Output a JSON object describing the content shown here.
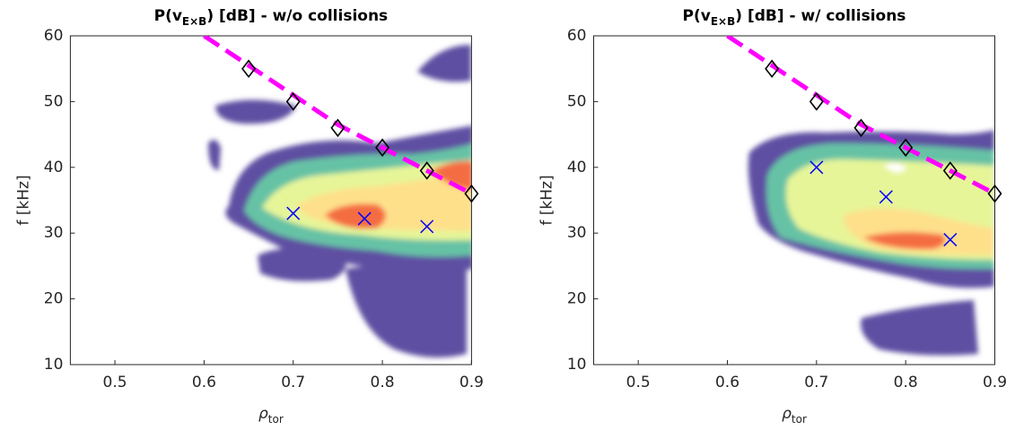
{
  "chart_data": [
    {
      "type": "contour",
      "title": "P(v",
      "title_subscript": "E×B",
      "title_suffix": ") [dB] - w/o collisions",
      "xlabel": "ρ",
      "xlabel_subscript": "tor",
      "ylabel": "f [kHz]",
      "xlim": [
        0.45,
        0.9
      ],
      "xticks": [
        0.5,
        0.6,
        0.7,
        0.8,
        0.9
      ],
      "ylim": [
        10,
        60
      ],
      "yticks": [
        10,
        20,
        30,
        40,
        50,
        60
      ],
      "line": {
        "x": [
          0.6,
          0.65,
          0.7,
          0.75,
          0.8,
          0.85,
          0.9
        ],
        "y": [
          60,
          55.5,
          51,
          46.5,
          43,
          39.5,
          36
        ],
        "color": "#ff00ff"
      },
      "diamonds": {
        "x": [
          0.65,
          0.7,
          0.75,
          0.8,
          0.85,
          0.9
        ],
        "y": [
          55,
          50,
          46,
          43,
          39.5,
          36
        ],
        "color": "#000000"
      },
      "crosses": {
        "x": [
          0.7,
          0.78,
          0.85
        ],
        "y": [
          33,
          32.2,
          31
        ],
        "color": "#0000ff"
      }
    },
    {
      "type": "contour",
      "title": "P(v",
      "title_subscript": "E×B",
      "title_suffix": ") [dB] - w/ collisions",
      "xlabel": "ρ",
      "xlabel_subscript": "tor",
      "ylabel": "f [kHz]",
      "xlim": [
        0.45,
        0.9
      ],
      "xticks": [
        0.5,
        0.6,
        0.7,
        0.8,
        0.9
      ],
      "ylim": [
        10,
        60
      ],
      "yticks": [
        10,
        20,
        30,
        40,
        50,
        60
      ],
      "line": {
        "x": [
          0.6,
          0.65,
          0.7,
          0.75,
          0.8,
          0.85,
          0.9
        ],
        "y": [
          60,
          55.5,
          51,
          46.5,
          43,
          39.5,
          36
        ],
        "color": "#ff00ff"
      },
      "diamonds": {
        "x": [
          0.65,
          0.7,
          0.75,
          0.8,
          0.85,
          0.9
        ],
        "y": [
          55,
          50,
          46,
          43,
          39.5,
          36
        ],
        "color": "#000000"
      },
      "crosses": {
        "x": [
          0.7,
          0.778,
          0.85
        ],
        "y": [
          40,
          35.5,
          29
        ],
        "color": "#0000ff"
      }
    }
  ]
}
